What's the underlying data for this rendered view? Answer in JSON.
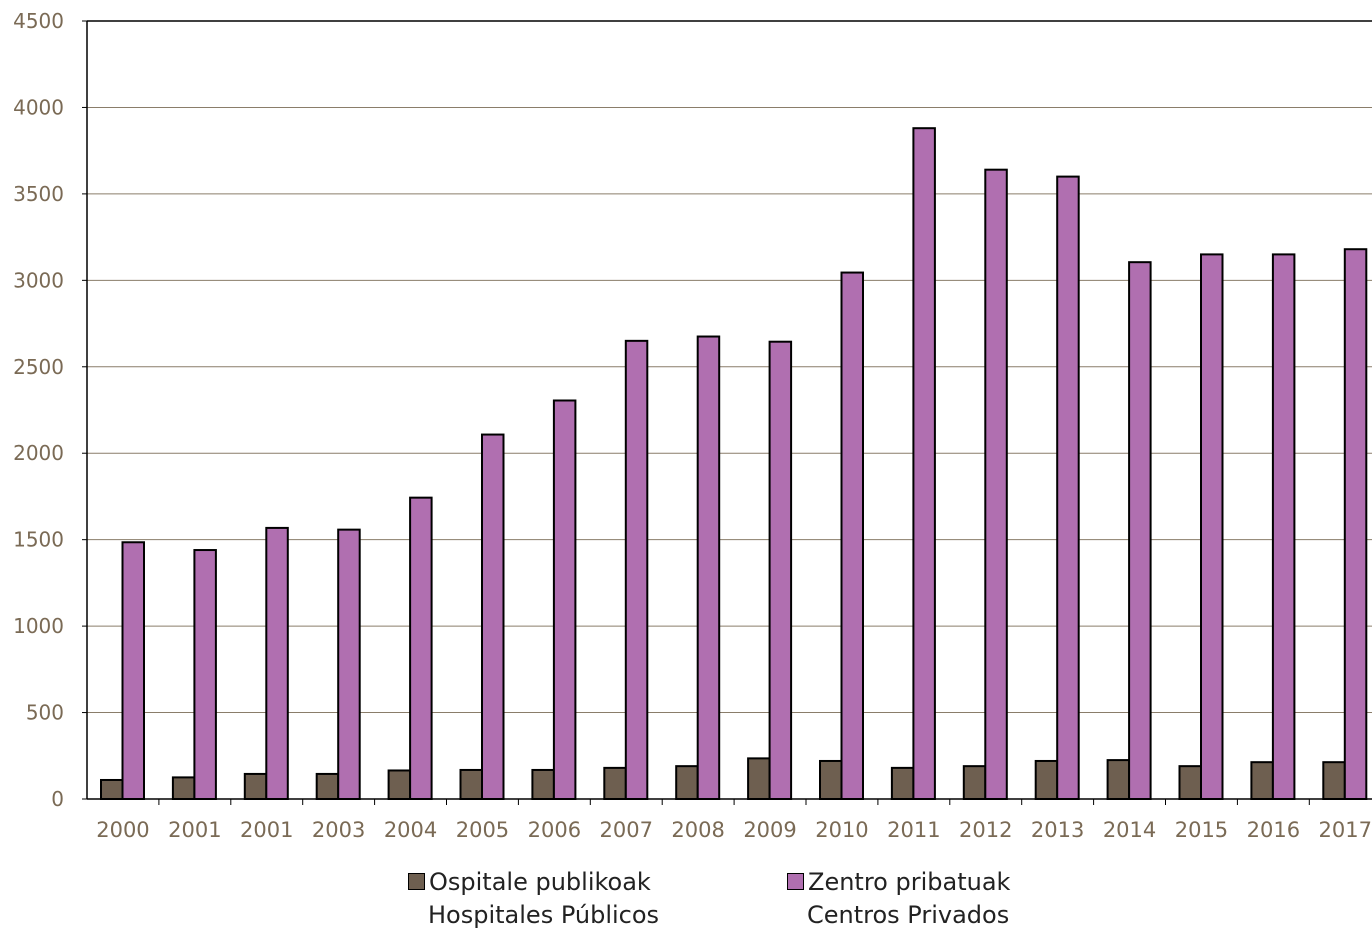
{
  "chart_data": {
    "type": "bar",
    "categories": [
      "2000",
      "2001",
      "2001",
      "2003",
      "2004",
      "2005",
      "2006",
      "2007",
      "2008",
      "2009",
      "2010",
      "2011",
      "2012",
      "2013",
      "2014",
      "2015",
      "2016",
      "2017"
    ],
    "series": [
      {
        "name": "Ospitale publikoak Hospitales Públicos",
        "name_line1": "Ospitale publikoak",
        "name_line2": "Hospitales Públicos",
        "color": "#6e5f50",
        "values": [
          110,
          125,
          145,
          145,
          165,
          168,
          168,
          180,
          190,
          235,
          220,
          180,
          190,
          220,
          225,
          190,
          213,
          213
        ]
      },
      {
        "name": "Zentro pribatuak Centros Privados",
        "name_line1": "Zentro pribatuak",
        "name_line2": "Centros Privados",
        "color": "#b06fb0",
        "values": [
          1485,
          1440,
          1568,
          1558,
          1743,
          2108,
          2305,
          2650,
          2675,
          2645,
          3045,
          3880,
          3640,
          3600,
          3105,
          3150,
          3150,
          3180
        ]
      }
    ],
    "yticks": [
      0,
      500,
      1000,
      1500,
      2000,
      2500,
      3000,
      3500,
      4000,
      4500
    ],
    "ylim": [
      0,
      4500
    ],
    "grid": true,
    "legend_position": "bottom"
  }
}
